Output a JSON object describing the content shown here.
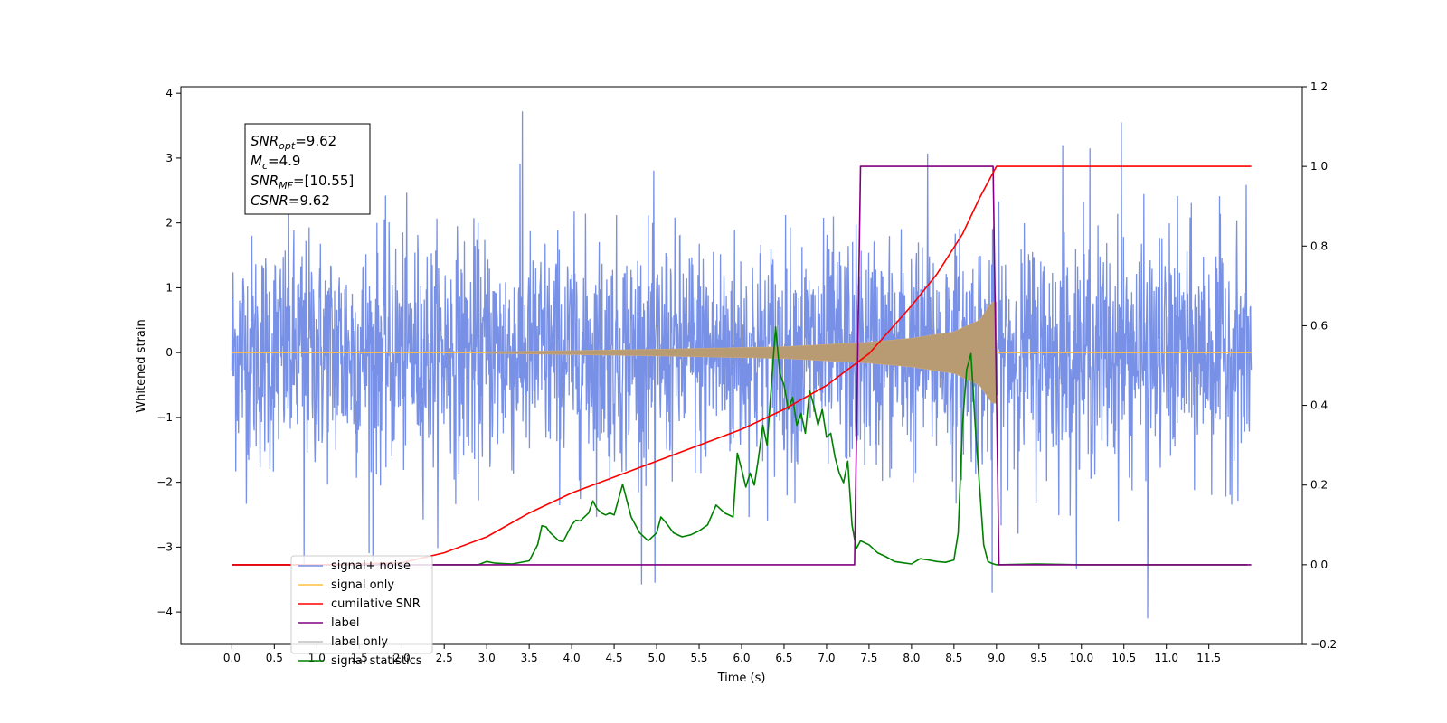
{
  "chart_data": {
    "type": "line",
    "xlabel": "Time (s)",
    "ylabel": "Whitened strain",
    "xlim": [
      -0.6,
      12.6
    ],
    "ylim_left": [
      -4.5,
      4.1
    ],
    "ylim_right": [
      -0.2,
      1.2
    ],
    "x_ticks": [
      "0.0",
      "0.5",
      "1.0",
      "1.5",
      "2.0",
      "2.5",
      "3.0",
      "3.5",
      "4.0",
      "4.5",
      "5.0",
      "5.5",
      "6.0",
      "6.5",
      "7.0",
      "7.5",
      "8.0",
      "8.5",
      "9.0",
      "9.5",
      "10.0",
      "10.5",
      "11.0",
      "11.5"
    ],
    "y_ticks_left": [
      "4",
      "3",
      "2",
      "1",
      "0",
      "−1",
      "−2",
      "−3",
      "−4"
    ],
    "y_ticks_right": [
      "1.2",
      "1.0",
      "0.8",
      "0.6",
      "0.4",
      "0.2",
      "0.0",
      "−0.2"
    ],
    "grid": false,
    "legend_position": "lower-left",
    "annotation": [
      {
        "base": "SNR",
        "sub": "opt",
        "rest": "=9.62"
      },
      {
        "base": "M",
        "sub": "c",
        "rest": "=4.9"
      },
      {
        "base": "SNR",
        "sub": "MF",
        "rest": "=[10.55]"
      },
      {
        "base": "CSNR",
        "sub": "",
        "rest": "=9.62"
      }
    ],
    "series": [
      {
        "name": "signal+ noise",
        "axis": "left",
        "color": "#7891e6",
        "x_range": [
          0.0,
          12.0
        ],
        "typical_envelope": [
          -2.4,
          2.4
        ],
        "notable_peaks": [
          {
            "x": 3.42,
            "y": 3.72
          },
          {
            "x": 10.47,
            "y": 3.55
          },
          {
            "x": 8.19,
            "y": 3.07
          },
          {
            "x": 9.78,
            "y": 3.2
          },
          {
            "x": 10.1,
            "y": 3.15
          },
          {
            "x": 0.85,
            "y": -3.3
          },
          {
            "x": 1.66,
            "y": -3.2
          },
          {
            "x": 4.98,
            "y": -3.55
          },
          {
            "x": 8.95,
            "y": -3.7
          },
          {
            "x": 10.78,
            "y": -4.1
          }
        ]
      },
      {
        "name": "signal only",
        "axis": "left",
        "color": "#ffbf40",
        "x_range": [
          0.0,
          12.0
        ],
        "chirp_start": 3.0,
        "chirp_end": 9.0,
        "envelope": [
          {
            "x": 3.0,
            "y": 0.01
          },
          {
            "x": 5.0,
            "y": 0.05
          },
          {
            "x": 6.5,
            "y": 0.09
          },
          {
            "x": 7.5,
            "y": 0.16
          },
          {
            "x": 8.0,
            "y": 0.22
          },
          {
            "x": 8.5,
            "y": 0.32
          },
          {
            "x": 8.8,
            "y": 0.5
          },
          {
            "x": 8.95,
            "y": 0.78
          }
        ]
      },
      {
        "name": "cumilative SNR",
        "axis": "right",
        "color": "#ff0000",
        "x": [
          0.0,
          1.0,
          2.0,
          2.5,
          3.0,
          3.5,
          4.0,
          4.5,
          5.0,
          5.5,
          6.0,
          6.5,
          7.0,
          7.5,
          8.0,
          8.3,
          8.6,
          8.8,
          9.0,
          10.0,
          11.0,
          12.0
        ],
        "values": [
          0.0,
          0.0,
          0.005,
          0.03,
          0.07,
          0.13,
          0.18,
          0.22,
          0.26,
          0.3,
          0.34,
          0.39,
          0.45,
          0.53,
          0.65,
          0.73,
          0.83,
          0.92,
          1.0,
          1.0,
          1.0,
          1.0
        ]
      },
      {
        "name": "label",
        "axis": "right",
        "color": "#800080",
        "x": [
          0.0,
          7.33,
          7.4,
          8.96,
          9.03,
          12.0
        ],
        "values": [
          0.0,
          0.0,
          1.0,
          1.0,
          0.0,
          0.0
        ]
      },
      {
        "name": "label only",
        "axis": "right",
        "color": "#c0c0c0",
        "hidden_behind": true
      },
      {
        "name": "signal statistics",
        "axis": "right",
        "color": "#008000",
        "x": [
          0.0,
          2.9,
          3.0,
          3.1,
          3.3,
          3.5,
          3.6,
          3.65,
          3.7,
          3.75,
          3.85,
          3.9,
          4.0,
          4.05,
          4.1,
          4.2,
          4.25,
          4.3,
          4.35,
          4.4,
          4.45,
          4.5,
          4.6,
          4.7,
          4.8,
          4.9,
          5.0,
          5.05,
          5.1,
          5.2,
          5.3,
          5.4,
          5.5,
          5.6,
          5.7,
          5.8,
          5.9,
          5.95,
          6.0,
          6.05,
          6.1,
          6.15,
          6.2,
          6.25,
          6.3,
          6.35,
          6.4,
          6.45,
          6.5,
          6.55,
          6.6,
          6.65,
          6.7,
          6.75,
          6.8,
          6.85,
          6.9,
          6.95,
          7.0,
          7.05,
          7.1,
          7.15,
          7.2,
          7.25,
          7.3,
          7.35,
          7.4,
          7.5,
          7.6,
          7.7,
          7.8,
          7.9,
          8.0,
          8.1,
          8.2,
          8.3,
          8.4,
          8.5,
          8.55,
          8.6,
          8.65,
          8.7,
          8.75,
          8.8,
          8.85,
          8.9,
          8.95,
          9.0,
          9.5,
          10.0,
          11.0,
          11.95
        ],
        "values": [
          0.0,
          0.0,
          0.008,
          0.004,
          0.002,
          0.01,
          0.05,
          0.098,
          0.095,
          0.08,
          0.06,
          0.058,
          0.1,
          0.112,
          0.11,
          0.13,
          0.16,
          0.14,
          0.13,
          0.125,
          0.13,
          0.125,
          0.202,
          0.12,
          0.08,
          0.06,
          0.08,
          0.12,
          0.108,
          0.08,
          0.07,
          0.075,
          0.085,
          0.1,
          0.15,
          0.13,
          0.12,
          0.28,
          0.24,
          0.195,
          0.23,
          0.2,
          0.27,
          0.35,
          0.3,
          0.45,
          0.597,
          0.48,
          0.45,
          0.39,
          0.42,
          0.35,
          0.38,
          0.33,
          0.438,
          0.4,
          0.35,
          0.39,
          0.32,
          0.33,
          0.27,
          0.23,
          0.206,
          0.26,
          0.1,
          0.04,
          0.06,
          0.05,
          0.03,
          0.02,
          0.008,
          0.005,
          0.002,
          0.015,
          0.012,
          0.008,
          0.006,
          0.012,
          0.08,
          0.35,
          0.49,
          0.53,
          0.35,
          0.2,
          0.05,
          0.008,
          0.003,
          0.0,
          0.002,
          0.0,
          0.0,
          0.0
        ]
      }
    ]
  }
}
